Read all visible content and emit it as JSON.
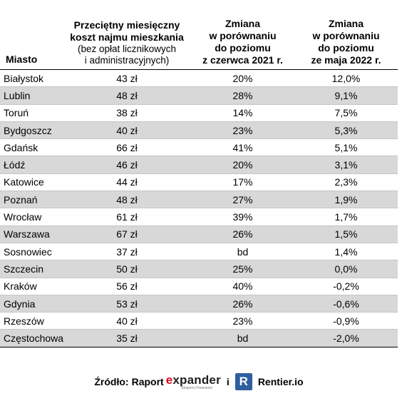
{
  "table": {
    "headers": {
      "city": "Miasto",
      "cost": {
        "line1": "Przeciętny miesięczny",
        "line2": "koszt najmu mieszkania",
        "note1": "(bez opłat licznikowych",
        "note2": "i administracyjnych)"
      },
      "change_2021": {
        "line1": "Zmiana",
        "line2": "w porównaniu",
        "line3": "do poziomu",
        "line4": "z czerwca 2021 r."
      },
      "change_2022": {
        "line1": "Zmiana",
        "line2": "w porównaniu",
        "line3": "do poziomu",
        "line4": "ze maja 2022 r."
      }
    },
    "rows": [
      {
        "city": "Białystok",
        "cost": "43 zł",
        "change_2021": "20%",
        "change_2022": "12,0%"
      },
      {
        "city": "Lublin",
        "cost": "48 zł",
        "change_2021": "28%",
        "change_2022": "9,1%"
      },
      {
        "city": "Toruń",
        "cost": "38 zł",
        "change_2021": "14%",
        "change_2022": "7,5%"
      },
      {
        "city": "Bydgoszcz",
        "cost": "40 zł",
        "change_2021": "23%",
        "change_2022": "5,3%"
      },
      {
        "city": "Gdańsk",
        "cost": "66 zł",
        "change_2021": "41%",
        "change_2022": "5,1%"
      },
      {
        "city": "Łódź",
        "cost": "46 zł",
        "change_2021": "20%",
        "change_2022": "3,1%"
      },
      {
        "city": "Katowice",
        "cost": "44 zł",
        "change_2021": "17%",
        "change_2022": "2,3%"
      },
      {
        "city": "Poznań",
        "cost": "48 zł",
        "change_2021": "27%",
        "change_2022": "1,9%"
      },
      {
        "city": "Wrocław",
        "cost": "61 zł",
        "change_2021": "39%",
        "change_2022": "1,7%"
      },
      {
        "city": "Warszawa",
        "cost": "67 zł",
        "change_2021": "26%",
        "change_2022": "1,5%"
      },
      {
        "city": "Sosnowiec",
        "cost": "37 zł",
        "change_2021": "bd",
        "change_2022": "1,4%"
      },
      {
        "city": "Szczecin",
        "cost": "50 zł",
        "change_2021": "25%",
        "change_2022": "0,0%"
      },
      {
        "city": "Kraków",
        "cost": "56 zł",
        "change_2021": "40%",
        "change_2022": "-0,2%"
      },
      {
        "city": "Gdynia",
        "cost": "53 zł",
        "change_2021": "26%",
        "change_2022": "-0,6%"
      },
      {
        "city": "Rzeszów",
        "cost": "40 zł",
        "change_2021": "23%",
        "change_2022": "-0,9%"
      },
      {
        "city": "Częstochowa",
        "cost": "35 zł",
        "change_2021": "bd",
        "change_2022": "-2,0%"
      }
    ]
  },
  "footer": {
    "source_label": "Źródło:",
    "report_label": "Raport",
    "expander_e": "e",
    "expander_rest": "xpander",
    "expander_tagline": "Eksperci Finansowi",
    "conjunction": "i",
    "rentier_icon_letter": "R",
    "rentier_name": "Rentier.io"
  },
  "colors": {
    "stripe": "#d8d8d8",
    "expander_red": "#e2001a",
    "rentier_blue": "#2f5f9e"
  }
}
